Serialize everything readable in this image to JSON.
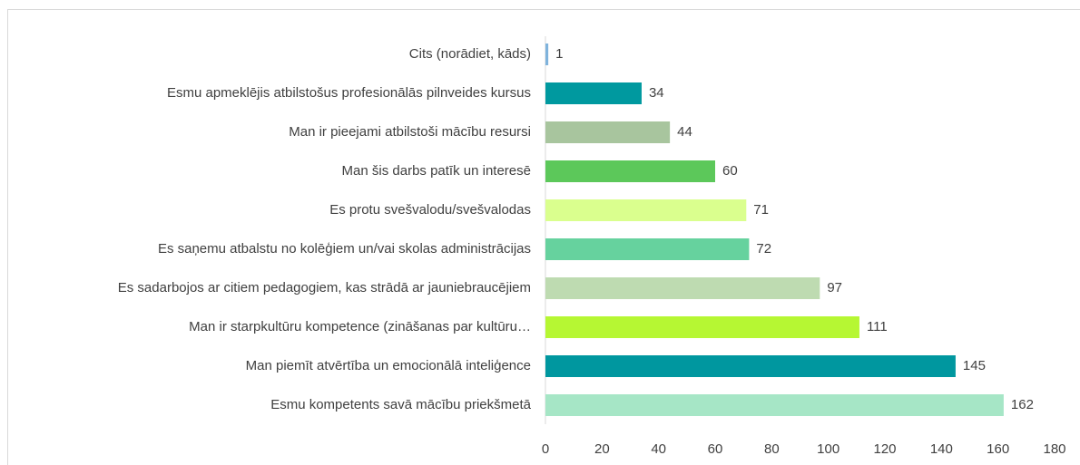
{
  "chart_data": {
    "type": "bar",
    "orientation": "horizontal",
    "categories": [
      "Cits (norādiet, kāds)",
      "Esmu apmeklējis atbilstošus profesionālās pilnveides kursus",
      "Man ir pieejami atbilstoši mācību resursi",
      "Man šis darbs patīk un interesē",
      "Es protu svešvalodu/svešvalodas",
      "Es saņemu atbalstu no kolēģiem un/vai skolas administrācijas",
      "Es sadarbojos ar citiem pedagogiem, kas strādā ar jauniebraucējiem",
      "Man ir starpkultūru kompetence (zināšanas par kultūru…",
      "Man piemīt atvērtība un emocionālā inteliģence",
      "Esmu kompetents savā mācību priekšmetā"
    ],
    "values": [
      1,
      34,
      44,
      60,
      71,
      72,
      97,
      111,
      145,
      162
    ],
    "colors": [
      "#7fb3dc",
      "#00999f",
      "#a8c59e",
      "#5cc85a",
      "#daff8e",
      "#66d29e",
      "#bedbb1",
      "#b6f733",
      "#00979f",
      "#a6e6c6"
    ],
    "xlim": [
      0,
      180
    ],
    "xticks": [
      0,
      20,
      40,
      60,
      80,
      100,
      120,
      140,
      160,
      180
    ],
    "grid": false
  }
}
